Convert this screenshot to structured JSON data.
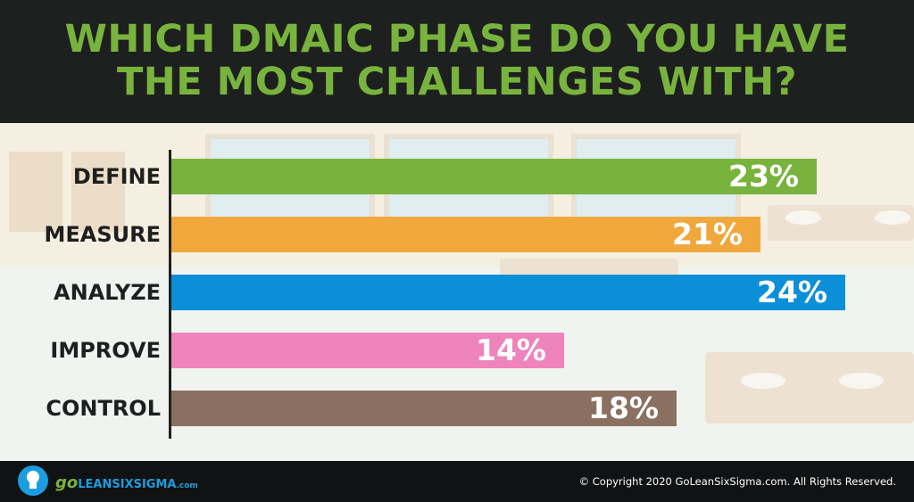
{
  "title": {
    "line1": "WHICH DMAIC PHASE DO YOU HAVE",
    "line2": "THE MOST CHALLENGES WITH?"
  },
  "chart_data": {
    "type": "bar",
    "orientation": "horizontal",
    "title": "WHICH DMAIC PHASE DO YOU HAVE THE MOST CHALLENGES WITH?",
    "categories": [
      "DEFINE",
      "MEASURE",
      "ANALYZE",
      "IMPROVE",
      "CONTROL"
    ],
    "values": [
      23,
      21,
      24,
      14,
      18
    ],
    "value_labels": [
      "23%",
      "21%",
      "24%",
      "14%",
      "18%"
    ],
    "colors": [
      "#78b33d",
      "#f0a83c",
      "#0b8fd8",
      "#ee84bb",
      "#8a7060"
    ],
    "xlim": [
      0,
      25
    ],
    "grid": false,
    "legend": "none"
  },
  "footer": {
    "logo": {
      "go": "go",
      "name": "LEANSIXSIGMA",
      "domain": ".com"
    },
    "copyright": "© Copyright 2020 GoLeanSixSigma.com. All Rights Reserved."
  },
  "colors": {
    "header_bg": "#1e1f1f",
    "title_green": "#78b33d",
    "footer_bg": "#111213",
    "logo_blue": "#1c9de0"
  }
}
